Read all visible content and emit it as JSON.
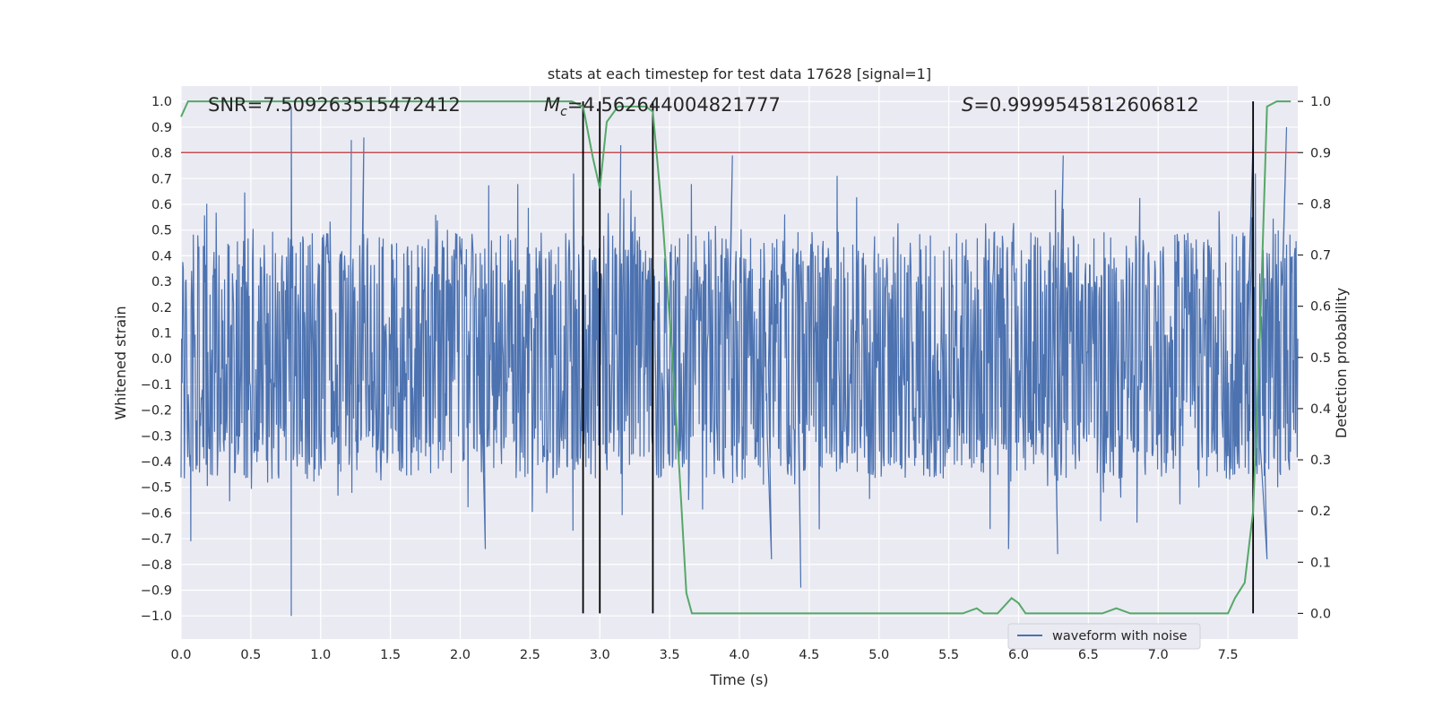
{
  "chart_data": {
    "type": "line",
    "title": "stats at each timestep for test data 17628 [signal=1]",
    "xlabel": "Time (s)",
    "ylabel_left": "Whitened strain",
    "ylabel_right": "Detection probability",
    "xlim": [
      0.0,
      8.0
    ],
    "ylim_left": [
      -1.09,
      1.06
    ],
    "ylim_right": [
      -0.05,
      1.03
    ],
    "x_ticks": [
      "0.0",
      "0.5",
      "1.0",
      "1.5",
      "2.0",
      "2.5",
      "3.0",
      "3.5",
      "4.0",
      "4.5",
      "5.0",
      "5.5",
      "6.0",
      "6.5",
      "7.0",
      "7.5"
    ],
    "x_tick_values": [
      0.0,
      0.5,
      1.0,
      1.5,
      2.0,
      2.5,
      3.0,
      3.5,
      4.0,
      4.5,
      5.0,
      5.5,
      6.0,
      6.5,
      7.0,
      7.5
    ],
    "y_left_ticks": [
      "1.0",
      "0.9",
      "0.8",
      "0.7",
      "0.6",
      "0.5",
      "0.4",
      "0.3",
      "0.2",
      "0.1",
      "0.0",
      "−0.1",
      "−0.2",
      "−0.3",
      "−0.4",
      "−0.5",
      "−0.6",
      "−0.7",
      "−0.8",
      "−0.9",
      "−1.0"
    ],
    "y_left_tick_values": [
      1.0,
      0.9,
      0.8,
      0.7,
      0.6,
      0.5,
      0.4,
      0.3,
      0.2,
      0.1,
      0.0,
      -0.1,
      -0.2,
      -0.3,
      -0.4,
      -0.5,
      -0.6,
      -0.7,
      -0.8,
      -0.9,
      -1.0
    ],
    "y_right_ticks": [
      "1.0",
      "0.9",
      "0.8",
      "0.7",
      "0.6",
      "0.5",
      "0.4",
      "0.3",
      "0.2",
      "0.1",
      "0.0"
    ],
    "y_right_tick_values": [
      1.0,
      0.9,
      0.8,
      0.7,
      0.6,
      0.5,
      0.4,
      0.3,
      0.2,
      0.1,
      0.0
    ],
    "annotations": {
      "snr": "SNR=7.509263515472412",
      "mc_symbol": "M",
      "mc_sub": "c",
      "mc_value": "=4.562644004821777",
      "s_symbol": "S",
      "s_value": "=0.9999545812606812"
    },
    "threshold": {
      "axis": "right",
      "value": 0.9,
      "color": "#c44e52"
    },
    "vertical_lines": [
      2.88,
      3.0,
      3.38,
      7.68
    ],
    "legend": [
      {
        "label": "waveform with noise",
        "color": "#4c72b0",
        "position": "bottom-right"
      }
    ],
    "waveform": {
      "name": "waveform with noise",
      "axis": "left",
      "color": "#4c72b0",
      "dt": 0.004,
      "seed": 17628,
      "envelope_upper": 0.38,
      "envelope_lower": -0.36,
      "noise_sigma": 0.25,
      "peaks": [
        {
          "x": 0.79,
          "y": 0.98
        },
        {
          "x": 0.79,
          "y": -1.0
        },
        {
          "x": 1.22,
          "y": 0.85
        },
        {
          "x": 1.31,
          "y": 0.86
        },
        {
          "x": 3.15,
          "y": 0.83
        },
        {
          "x": 3.95,
          "y": 0.79
        },
        {
          "x": 6.32,
          "y": 0.79
        },
        {
          "x": 7.92,
          "y": 0.9
        },
        {
          "x": 4.44,
          "y": -0.89
        },
        {
          "x": 4.23,
          "y": -0.78
        },
        {
          "x": 6.28,
          "y": -0.76
        },
        {
          "x": 7.78,
          "y": -0.78
        },
        {
          "x": 2.18,
          "y": -0.74
        },
        {
          "x": 0.07,
          "y": -0.71
        },
        {
          "x": 7.68,
          "y": 0.86
        }
      ]
    },
    "probability": {
      "name": "Detection probability",
      "axis": "right",
      "color": "#55a868",
      "x": [
        0.0,
        0.05,
        0.1,
        0.5,
        1.0,
        1.5,
        2.0,
        2.5,
        2.8,
        2.88,
        2.95,
        3.0,
        3.05,
        3.13,
        3.2,
        3.28,
        3.33,
        3.38,
        3.45,
        3.52,
        3.57,
        3.62,
        3.66,
        3.8,
        4.5,
        5.0,
        5.2,
        5.4,
        5.6,
        5.7,
        5.75,
        5.85,
        5.95,
        6.0,
        6.05,
        6.15,
        6.4,
        6.6,
        6.7,
        6.8,
        7.0,
        7.5,
        7.55,
        7.62,
        7.68,
        7.73,
        7.78,
        7.85,
        7.95
      ],
      "y": [
        0.97,
        1.0,
        1.0,
        1.0,
        1.0,
        1.0,
        1.0,
        1.0,
        1.0,
        0.99,
        0.89,
        0.83,
        0.96,
        0.99,
        0.99,
        0.99,
        0.99,
        0.98,
        0.77,
        0.5,
        0.28,
        0.04,
        0.0,
        0.0,
        0.0,
        0.0,
        0.0,
        0.0,
        0.0,
        0.01,
        0.0,
        0.0,
        0.03,
        0.02,
        0.0,
        0.0,
        0.0,
        0.0,
        0.01,
        0.0,
        0.0,
        0.0,
        0.03,
        0.06,
        0.2,
        0.55,
        0.99,
        1.0,
        1.0
      ]
    }
  }
}
